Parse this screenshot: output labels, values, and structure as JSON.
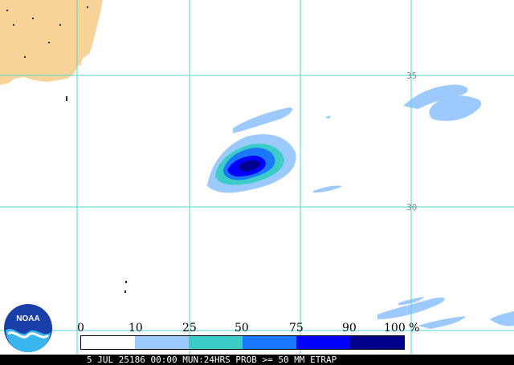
{
  "colors": {
    "ocean": "#ffffff",
    "land": "#f8d398",
    "grid": "#4fd6d6",
    "prob_bins": [
      "#ffffff",
      "#9ccaff",
      "#3cccc8",
      "#1a78ff",
      "#0000ff",
      "#00008c"
    ]
  },
  "grid_labels": {
    "lat_35": "35",
    "lat_30": "30"
  },
  "legend": {
    "ticks": [
      "0",
      "10",
      "25",
      "50",
      "75",
      "90",
      "100 %"
    ]
  },
  "caption": "5 JUL 25186 00:00 MUN:24HRS PROB >= 50 MM ETRAP",
  "logo": {
    "icon": "noaa-logo",
    "text": "NOAA"
  }
}
